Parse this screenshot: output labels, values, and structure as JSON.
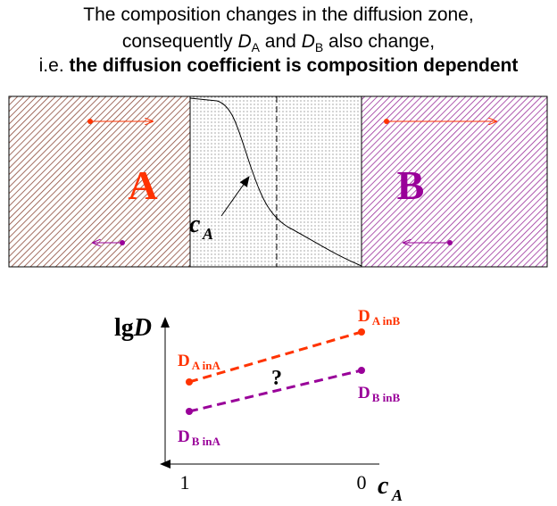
{
  "title": {
    "line1": "The composition changes in the diffusion zone,",
    "line2_pre": "consequently ",
    "d_sym": "D",
    "sub_a": "A",
    "and": " and ",
    "sub_b": "B",
    "line2_post": " also change,",
    "line3_pre": "i.e. ",
    "line3_bold": "the diffusion coefficient is composition dependent"
  },
  "top_diagram": {
    "left_label": "A",
    "right_label": "B",
    "curve_label_c": "c",
    "curve_label_sub": "A",
    "colors": {
      "a": "#ff3300",
      "b": "#990099",
      "hatch_a": "#8b4a3a",
      "hatch_b": "#9a2f9a"
    }
  },
  "graph": {
    "y_axis_label_pre": "lg",
    "y_axis_label_it": "D",
    "x_axis_label_c": "c",
    "x_axis_label_sub": "A",
    "x_tick_left": "1",
    "x_tick_right": "0",
    "question": "?",
    "labels": {
      "da_inb_main": "D",
      "da_inb_sub": "A inB",
      "da_ina_main": "D",
      "da_ina_sub": "A inA",
      "db_inb_main": "D",
      "db_inb_sub": "B inB",
      "db_ina_main": "D",
      "db_ina_sub": "B inA"
    }
  }
}
